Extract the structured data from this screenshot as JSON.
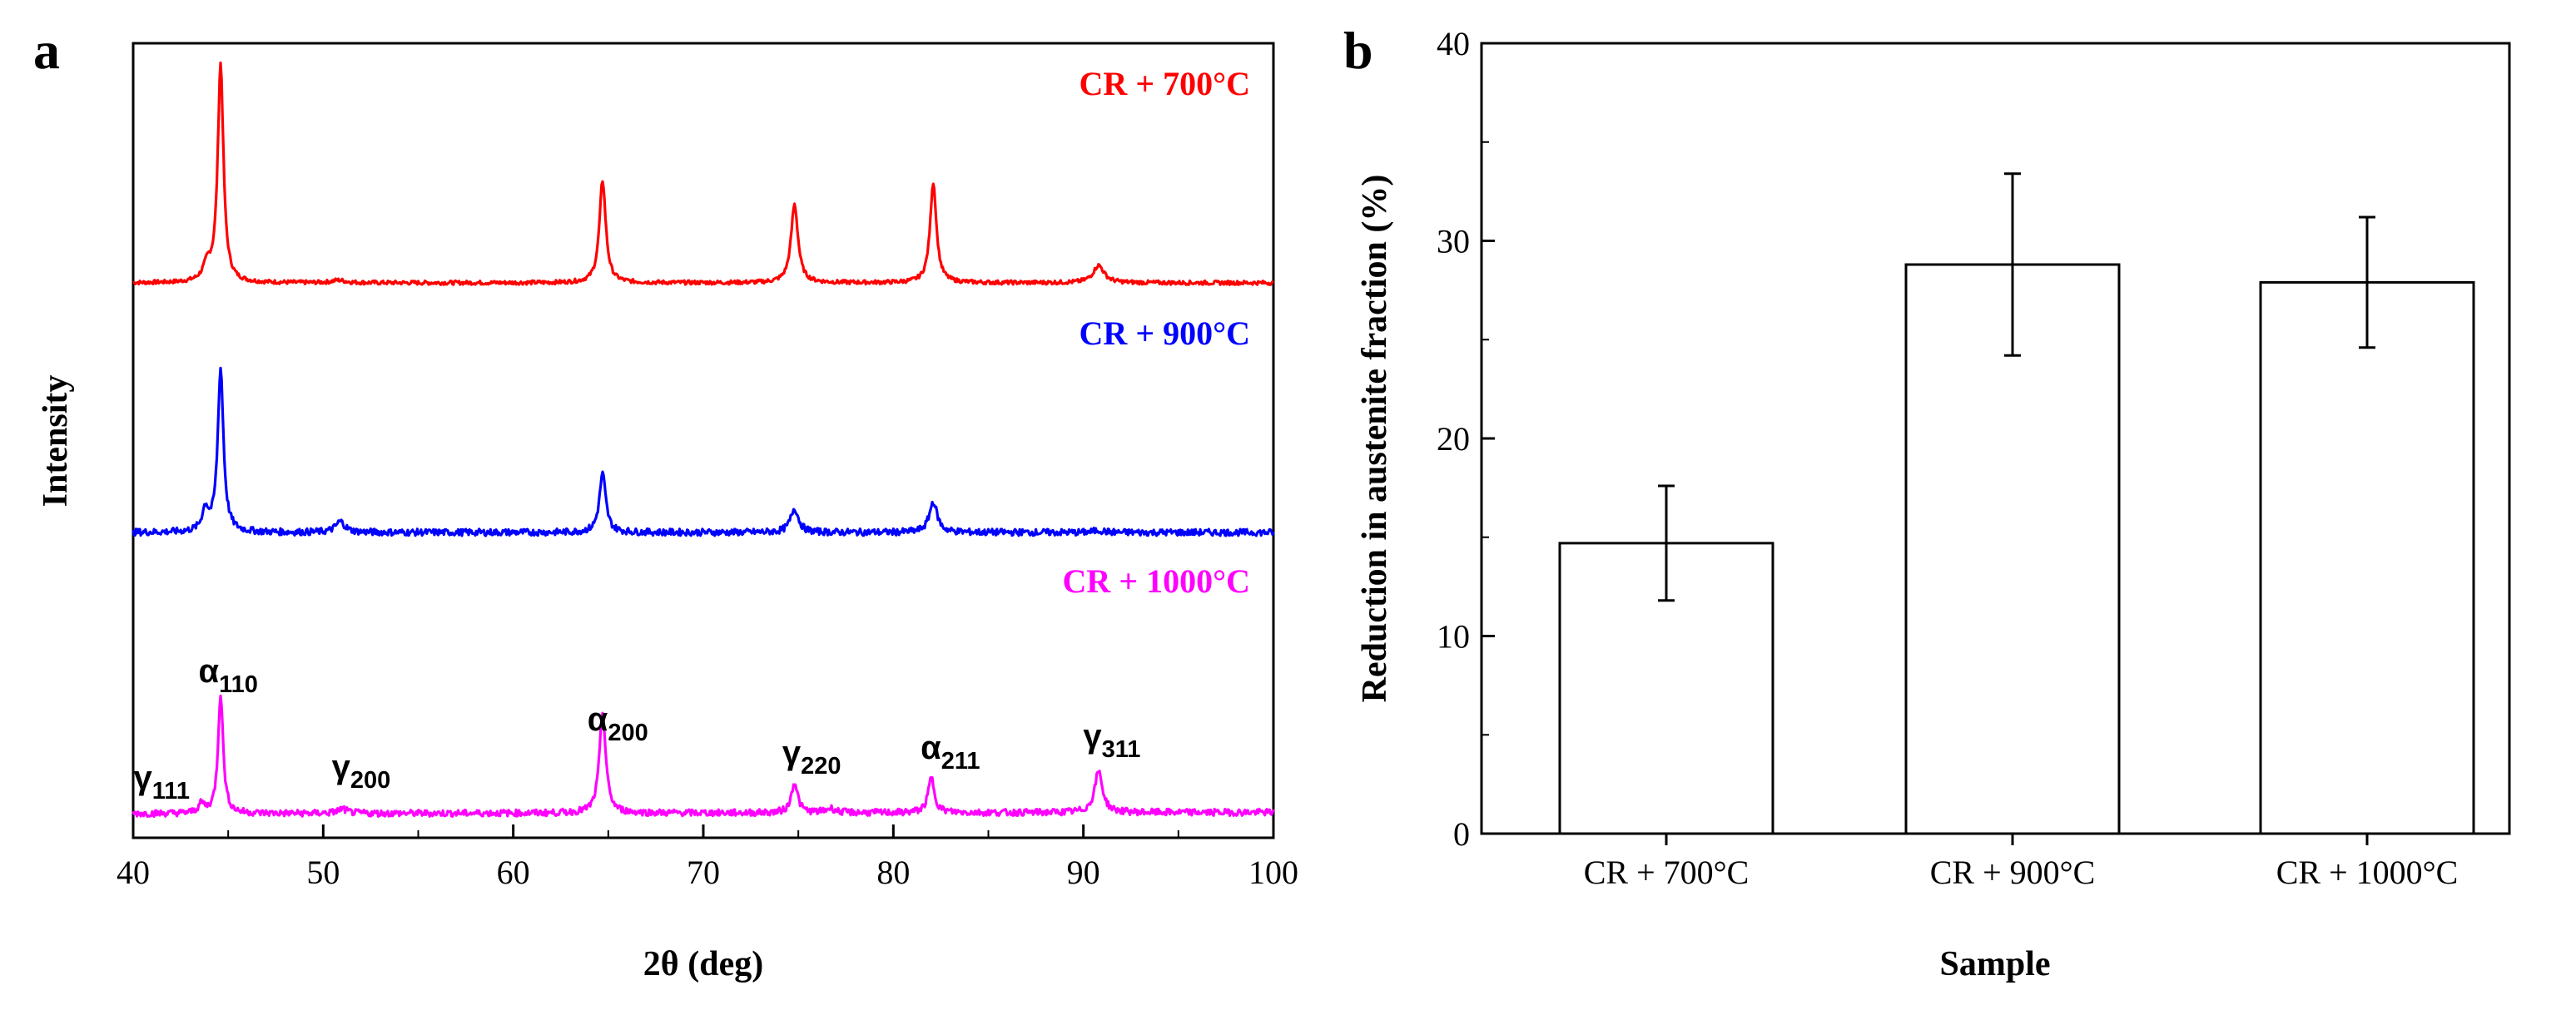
{
  "chart_data": [
    {
      "type": "line",
      "panel": "a",
      "title": "",
      "xlabel": "2θ (deg)",
      "ylabel": "Intensity",
      "xlim": [
        40,
        100
      ],
      "xticks": [
        "40",
        "50",
        "60",
        "70",
        "80",
        "90",
        "100"
      ],
      "grid": false,
      "series": [
        {
          "name": "CR + 700°C",
          "color": "#ff0000",
          "peaks": [
            [
              43.9,
              0.07,
              0.25
            ],
            [
              44.6,
              1.0,
              0.18
            ],
            [
              50.8,
              0.012,
              0.4
            ],
            [
              64.7,
              0.47,
              0.2
            ],
            [
              74.8,
              0.36,
              0.22
            ],
            [
              82.1,
              0.46,
              0.2
            ],
            [
              90.8,
              0.08,
              0.35
            ]
          ]
        },
        {
          "name": "CR + 900°C",
          "color": "#0000ff",
          "peaks": [
            [
              43.8,
              0.1,
              0.2
            ],
            [
              44.6,
              0.75,
              0.18
            ],
            [
              50.9,
              0.05,
              0.3
            ],
            [
              64.7,
              0.27,
              0.2
            ],
            [
              74.8,
              0.11,
              0.25
            ],
            [
              82.1,
              0.14,
              0.25
            ],
            [
              90.8,
              0.01,
              0.3
            ]
          ]
        },
        {
          "name": "CR + 1000°C",
          "color": "#ff00ff",
          "peaks": [
            [
              43.6,
              0.04,
              0.2
            ],
            [
              44.6,
              0.55,
              0.16
            ],
            [
              51.0,
              0.02,
              0.3
            ],
            [
              64.7,
              0.46,
              0.2
            ],
            [
              74.8,
              0.14,
              0.2
            ],
            [
              76.7,
              0.02,
              0.3
            ],
            [
              82.0,
              0.16,
              0.2
            ],
            [
              90.8,
              0.19,
              0.25
            ]
          ]
        }
      ],
      "peak_labels": [
        {
          "greek": "γ",
          "sub": "111",
          "x": 41.5
        },
        {
          "greek": "α",
          "sub": "110",
          "x": 45.0
        },
        {
          "greek": "γ",
          "sub": "200",
          "x": 52.0
        },
        {
          "greek": "α",
          "sub": "200",
          "x": 65.5
        },
        {
          "greek": "γ",
          "sub": "220",
          "x": 75.7
        },
        {
          "greek": "α",
          "sub": "211",
          "x": 83.0
        },
        {
          "greek": "γ",
          "sub": "311",
          "x": 91.5
        }
      ]
    },
    {
      "type": "bar",
      "panel": "b",
      "title": "",
      "xlabel": "Sample",
      "ylabel": "Reduction in austenite fraction (%)",
      "ylim": [
        0,
        40
      ],
      "yticks": [
        "0",
        "10",
        "20",
        "30",
        "40"
      ],
      "categories": [
        "CR + 700°C",
        "CR + 900°C",
        "CR + 1000°C"
      ],
      "values": [
        14.7,
        28.8,
        27.9
      ],
      "errors": [
        2.9,
        4.6,
        3.3
      ],
      "grid": false
    }
  ],
  "panels": {
    "a": "a",
    "b": "b"
  }
}
